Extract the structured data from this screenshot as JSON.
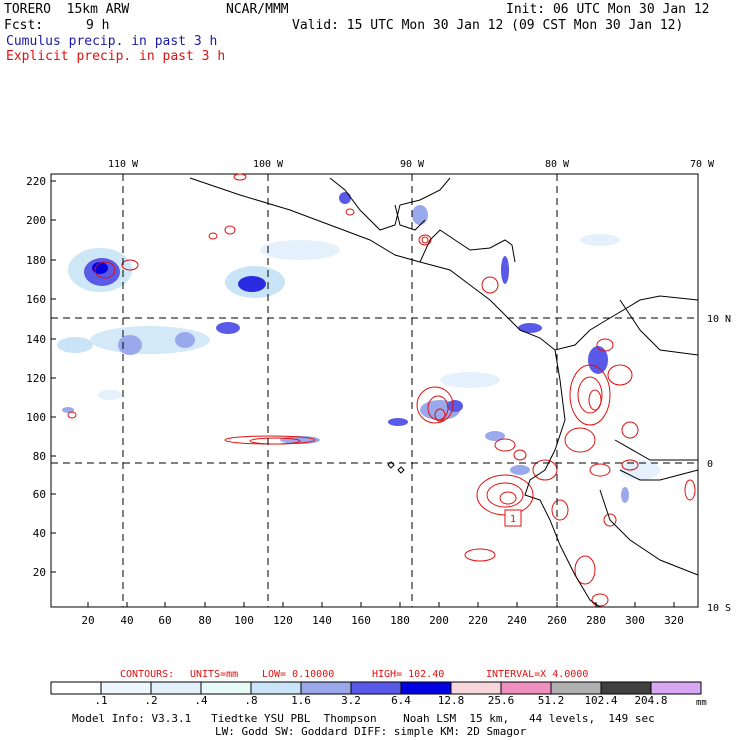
{
  "header": {
    "model": "TORERO  15km ARW",
    "center": "NCAR/MMM",
    "init": "Init: 06 UTC Mon 30 Jan 12",
    "fcst_label": "Fcst:",
    "fcst_value": "9 h",
    "valid": "Valid: 15 UTC Mon 30 Jan 12 (09 CST Mon 30 Jan 12)"
  },
  "legend": {
    "cumulus": "Cumulus precip. in past 3 h",
    "explicit": "Explicit precip. in past 3 h"
  },
  "map": {
    "top_lon_labels": [
      "110 W",
      "100 W",
      "90 W",
      "80 W",
      "70 W"
    ],
    "right_lat_labels": [
      "10 N",
      "0",
      "10 S"
    ],
    "y_ticks": [
      "220",
      "200",
      "180",
      "160",
      "140",
      "120",
      "100",
      "80",
      "60",
      "40",
      "20"
    ],
    "x_ticks": [
      "20",
      "40",
      "60",
      "80",
      "100",
      "120",
      "140",
      "160",
      "180",
      "200",
      "220",
      "240",
      "260",
      "280",
      "300",
      "320"
    ],
    "highlight_label": "1"
  },
  "contours_info": {
    "contours": "CONTOURS:",
    "units": "UNITS=mm",
    "low": "LOW= 0.10000",
    "high": "HIGH= 102.40",
    "interval": "INTERVAL=X 4.0000"
  },
  "colorbar": {
    "labels": [
      ".1",
      ".2",
      ".4",
      ".8",
      "1.6",
      "3.2",
      "6.4",
      "12.8",
      "25.6",
      "51.2",
      "102.4",
      "204.8"
    ],
    "unit": "mm",
    "colors": [
      "#ffffff",
      "#eef6ff",
      "#e4f0fb",
      "#e6fbf8",
      "#c8e4f6",
      "#9aa8ec",
      "#5a5ae8",
      "#0000e0",
      "#f6d6da",
      "#f090c0",
      "#b0b0b0",
      "#404040",
      "#d8a8f4"
    ]
  },
  "model_info": {
    "line1": "Model Info: V3.3.1   Tiedtke YSU PBL  Thompson    Noah LSM  15 km,   44 levels,  149 sec",
    "line2": "LW: Godd SW: Goddard DIFF: simple KM: 2D Smagor"
  }
}
